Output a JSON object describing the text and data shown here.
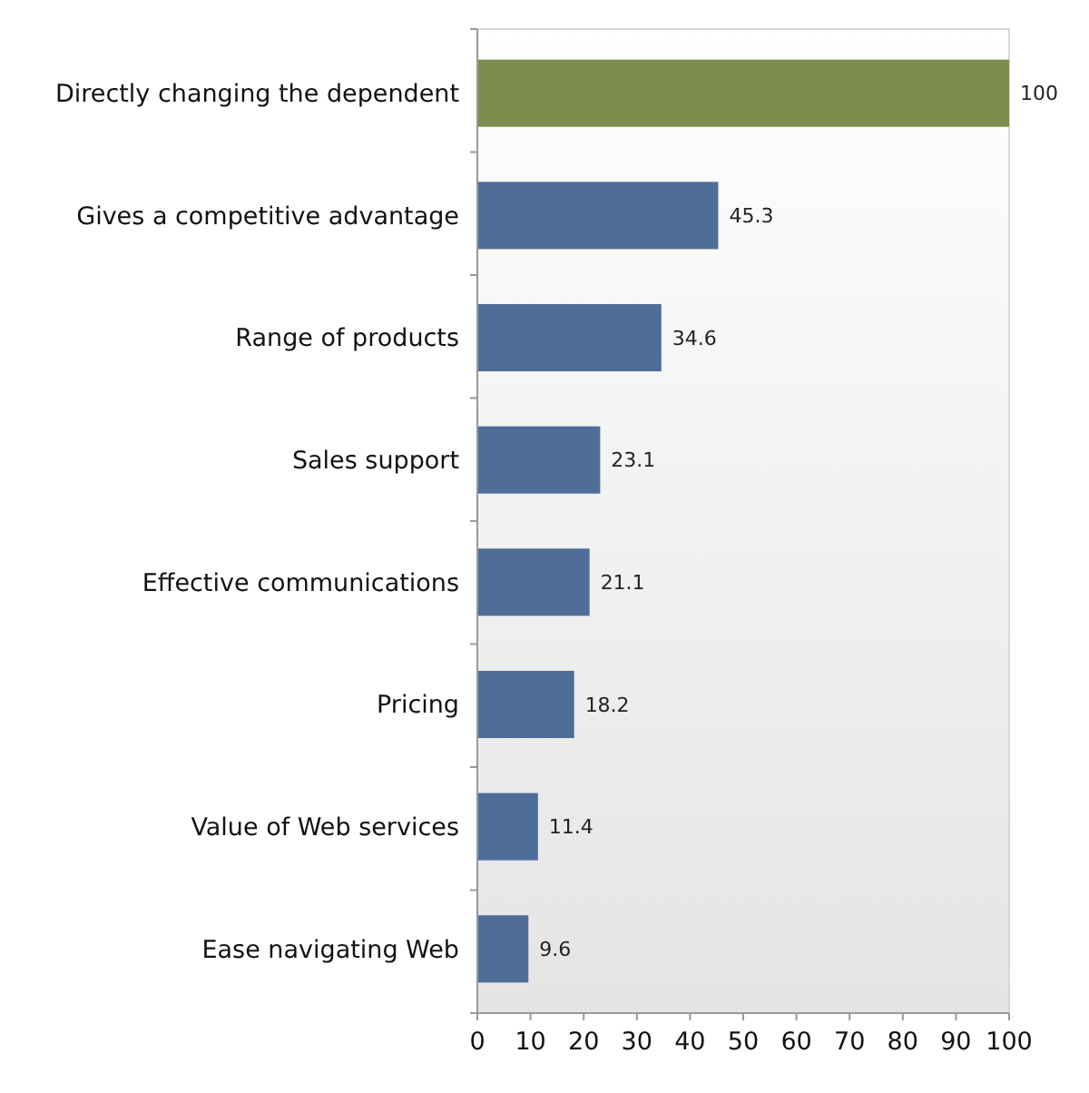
{
  "chart_data": {
    "type": "bar",
    "orientation": "horizontal",
    "categories": [
      "Directly changing the dependent",
      "Gives a competitive advantage",
      "Range of products",
      "Sales support",
      "Effective communications",
      "Pricing",
      "Value of Web services",
      "Ease navigating Web"
    ],
    "values": [
      100,
      45.3,
      34.6,
      23.1,
      21.1,
      18.2,
      11.4,
      9.6
    ],
    "colors": [
      "#7d8c4f",
      "#4f6d99",
      "#4f6d99",
      "#4f6d99",
      "#4f6d99",
      "#4f6d99",
      "#4f6d99",
      "#4f6d99"
    ],
    "xlim": [
      0,
      100
    ],
    "xticks": [
      0,
      10,
      20,
      30,
      40,
      50,
      60,
      70,
      80,
      90,
      100
    ],
    "data_labels": true
  }
}
